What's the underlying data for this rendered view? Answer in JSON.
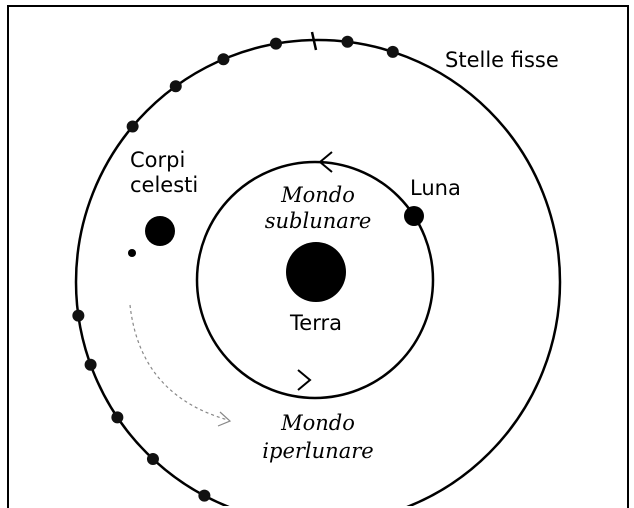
{
  "labels": {
    "fixed_stars": "Stelle fisse",
    "celestial_bodies": [
      "Corpi",
      "celesti"
    ],
    "moon": "Luna",
    "sublunar_world": [
      "Mondo",
      "sublunare"
    ],
    "earth": "Terra",
    "superlunar_world": [
      "Mondo",
      "iperlunare"
    ]
  }
}
